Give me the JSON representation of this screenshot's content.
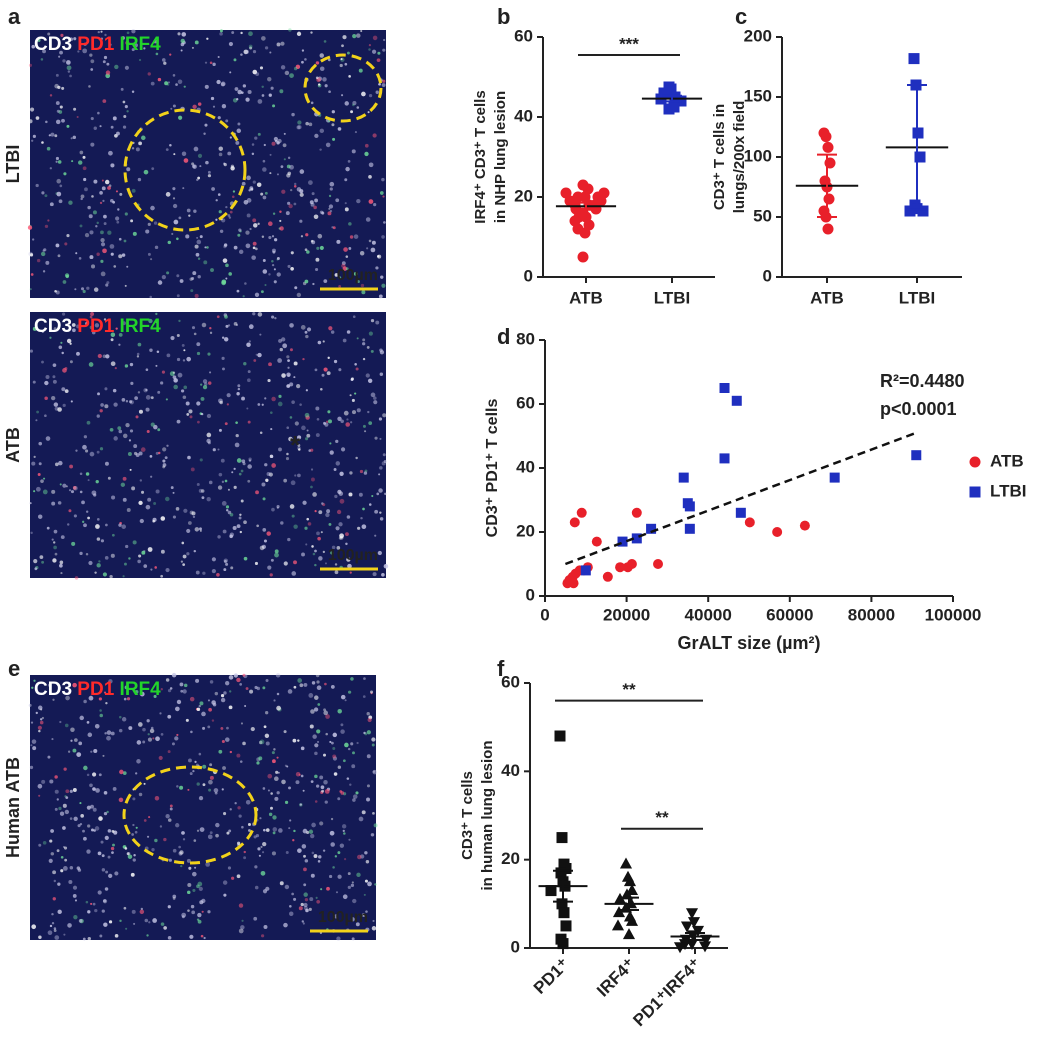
{
  "panel_labels": [
    "a",
    "b",
    "c",
    "d",
    "e",
    "f"
  ],
  "images": [
    {
      "side_label": "LTBI",
      "stains": [
        "CD3",
        "PD1",
        "IRF4"
      ],
      "scale_bar": "100µm"
    },
    {
      "side_label": "ATB",
      "stains": [
        "CD3",
        "PD1",
        "IRF4"
      ],
      "scale_bar": "100µm",
      "marker": "*"
    },
    {
      "side_label": "Human ATB",
      "stains": [
        "CD3",
        "PD1",
        "IRF4"
      ],
      "scale_bar": "100µm"
    }
  ],
  "chart_data": [
    {
      "type": "dot",
      "ylabel": [
        "IRF4⁺ CD3⁺ T cells",
        "in NHP lung lesion"
      ],
      "categories": [
        "ATB",
        "LTBI"
      ],
      "groups": [
        {
          "color": "#e8202a",
          "marker": "circle",
          "values": [
            5,
            11,
            12,
            13,
            14,
            15,
            15,
            16,
            17,
            17,
            18,
            18,
            18,
            19,
            19,
            20,
            20,
            20,
            21,
            21,
            22,
            23
          ],
          "mean": 17.7,
          "error": 0.9
        },
        {
          "color": "#1f2fbf",
          "marker": "square",
          "values": [
            47.5,
            47,
            46,
            45,
            44.5,
            44,
            42.5,
            42
          ],
          "mean": 44.6,
          "error": 0.7
        }
      ],
      "ylim": [
        0,
        60
      ],
      "yticks": [
        0,
        20,
        40,
        60
      ],
      "significance": [
        {
          "from": 0,
          "to": 1,
          "label": "***"
        }
      ]
    },
    {
      "type": "dot",
      "ylabel": [
        "CD3⁺ T cells in",
        "lungs/200x field"
      ],
      "categories": [
        "ATB",
        "LTBI"
      ],
      "groups": [
        {
          "color": "#e8202a",
          "marker": "circle",
          "values": [
            120,
            117,
            108,
            95,
            80,
            75,
            65,
            55,
            50,
            40
          ],
          "mean": 76,
          "error": 26
        },
        {
          "color": "#1f2fbf",
          "marker": "square",
          "values": [
            182,
            160,
            120,
            100,
            60,
            57,
            55,
            55
          ],
          "mean": 108,
          "error": 52
        }
      ],
      "ylim": [
        0,
        200
      ],
      "yticks": [
        0,
        50,
        100,
        150,
        200
      ],
      "significance": []
    },
    {
      "type": "scatter",
      "ylabel": [
        "CD3⁺ PD1⁺ T cells"
      ],
      "xlabel": "GrALT size (µm²)",
      "series": [
        {
          "name": "ATB",
          "color": "#e8202a",
          "marker": "circle",
          "x": [
            7300,
            9000,
            12700,
            15400,
            5500,
            6000,
            6800,
            7500,
            8500,
            9500,
            10500,
            18400,
            20300,
            22500,
            21300,
            27700,
            50200,
            56900,
            63700,
            6200,
            7000
          ],
          "y": [
            23,
            26,
            17,
            6,
            4,
            5,
            6,
            7,
            8,
            8,
            9,
            9,
            9,
            26,
            10,
            10,
            23,
            20,
            22,
            5,
            4
          ]
        },
        {
          "name": "LTBI",
          "color": "#1f2fbf",
          "marker": "square",
          "x": [
            34000,
            35000,
            35500,
            35500,
            44000,
            47000,
            44000,
            48000,
            71000,
            91000,
            26000,
            22500,
            19000,
            10000
          ],
          "y": [
            37,
            29,
            28,
            21,
            65,
            61,
            43,
            26,
            37,
            44,
            21,
            18,
            17,
            8
          ]
        }
      ],
      "trendline": {
        "x": [
          5000,
          91000
        ],
        "y": [
          10,
          51
        ]
      },
      "annotations": [
        "R²=0.4480",
        "p<0.0001"
      ],
      "xlim": [
        0,
        100000
      ],
      "xticks": [
        0,
        20000,
        40000,
        60000,
        80000,
        100000
      ],
      "ylim": [
        0,
        80
      ],
      "yticks": [
        0,
        20,
        40,
        60,
        80
      ]
    },
    {
      "type": "dot",
      "ylabel": [
        "CD3⁺ T cells",
        "in human lung lesion"
      ],
      "categories": [
        "PD1⁺",
        "IRF4⁺",
        "PD1⁺IRF4⁺"
      ],
      "groups": [
        {
          "color": "#111111",
          "marker": "square",
          "values": [
            48,
            25,
            19,
            18,
            17,
            15,
            14,
            13,
            10,
            8,
            5,
            2,
            1
          ],
          "mean": 14,
          "error": 3.5
        },
        {
          "color": "#111111",
          "marker": "triangle",
          "values": [
            19,
            16,
            15,
            13,
            12,
            11,
            10,
            9,
            8,
            7,
            6,
            5,
            3
          ],
          "mean": 10,
          "error": 1.4
        },
        {
          "color": "#111111",
          "marker": "triangle-down",
          "values": [
            8,
            6,
            5,
            4,
            3,
            2,
            2,
            1,
            1,
            0.5,
            0.3
          ],
          "mean": 2.6,
          "error": 0.8
        }
      ],
      "ylim": [
        0,
        60
      ],
      "yticks": [
        0,
        20,
        40,
        60
      ],
      "significance": [
        {
          "from": 0,
          "to": 2,
          "label": "**"
        },
        {
          "from": 1,
          "to": 2,
          "label": "**"
        }
      ]
    }
  ]
}
